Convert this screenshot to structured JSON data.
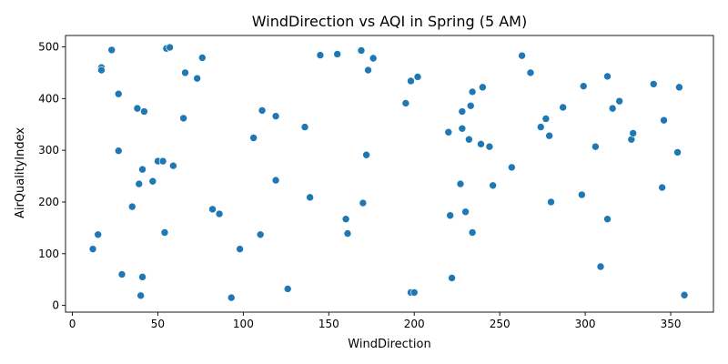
{
  "chart_data": {
    "type": "scatter",
    "title": "WindDirection vs AQI in Spring (5 AM)",
    "xlabel": "WindDirection",
    "ylabel": "AirQualityIndex",
    "xlim": [
      -4,
      375
    ],
    "ylim": [
      -13,
      522
    ],
    "xticks": [
      0,
      50,
      100,
      150,
      200,
      250,
      300,
      350
    ],
    "yticks": [
      0,
      100,
      200,
      300,
      400,
      500
    ],
    "grid": false,
    "marker_color": "#1f77b4",
    "points": [
      [
        12,
        109
      ],
      [
        15,
        137
      ],
      [
        17,
        460
      ],
      [
        17,
        455
      ],
      [
        23,
        494
      ],
      [
        27,
        409
      ],
      [
        27,
        299
      ],
      [
        29,
        60
      ],
      [
        35,
        191
      ],
      [
        38,
        381
      ],
      [
        39,
        235
      ],
      [
        40,
        19
      ],
      [
        41,
        55
      ],
      [
        41,
        263
      ],
      [
        42,
        375
      ],
      [
        47,
        240
      ],
      [
        50,
        279
      ],
      [
        53,
        279
      ],
      [
        54,
        141
      ],
      [
        55,
        497
      ],
      [
        57,
        499
      ],
      [
        59,
        270
      ],
      [
        65,
        362
      ],
      [
        66,
        450
      ],
      [
        73,
        439
      ],
      [
        76,
        479
      ],
      [
        82,
        186
      ],
      [
        86,
        177
      ],
      [
        93,
        15
      ],
      [
        98,
        109
      ],
      [
        106,
        324
      ],
      [
        110,
        137
      ],
      [
        111,
        377
      ],
      [
        119,
        366
      ],
      [
        119,
        242
      ],
      [
        126,
        32
      ],
      [
        136,
        345
      ],
      [
        139,
        209
      ],
      [
        145,
        484
      ],
      [
        155,
        486
      ],
      [
        160,
        167
      ],
      [
        161,
        139
      ],
      [
        169,
        493
      ],
      [
        170,
        198
      ],
      [
        172,
        291
      ],
      [
        173,
        455
      ],
      [
        176,
        478
      ],
      [
        195,
        391
      ],
      [
        198,
        434
      ],
      [
        198,
        25
      ],
      [
        200,
        25
      ],
      [
        202,
        442
      ],
      [
        220,
        335
      ],
      [
        221,
        174
      ],
      [
        222,
        53
      ],
      [
        227,
        235
      ],
      [
        228,
        342
      ],
      [
        228,
        375
      ],
      [
        230,
        181
      ],
      [
        232,
        321
      ],
      [
        233,
        386
      ],
      [
        234,
        141
      ],
      [
        234,
        413
      ],
      [
        239,
        312
      ],
      [
        240,
        422
      ],
      [
        244,
        307
      ],
      [
        246,
        232
      ],
      [
        257,
        267
      ],
      [
        263,
        483
      ],
      [
        268,
        450
      ],
      [
        274,
        345
      ],
      [
        277,
        361
      ],
      [
        279,
        328
      ],
      [
        280,
        200
      ],
      [
        287,
        383
      ],
      [
        298,
        214
      ],
      [
        299,
        424
      ],
      [
        306,
        307
      ],
      [
        309,
        75
      ],
      [
        313,
        443
      ],
      [
        313,
        167
      ],
      [
        316,
        381
      ],
      [
        320,
        395
      ],
      [
        327,
        321
      ],
      [
        328,
        333
      ],
      [
        340,
        428
      ],
      [
        345,
        228
      ],
      [
        346,
        358
      ],
      [
        354,
        296
      ],
      [
        355,
        422
      ],
      [
        358,
        20
      ]
    ]
  }
}
